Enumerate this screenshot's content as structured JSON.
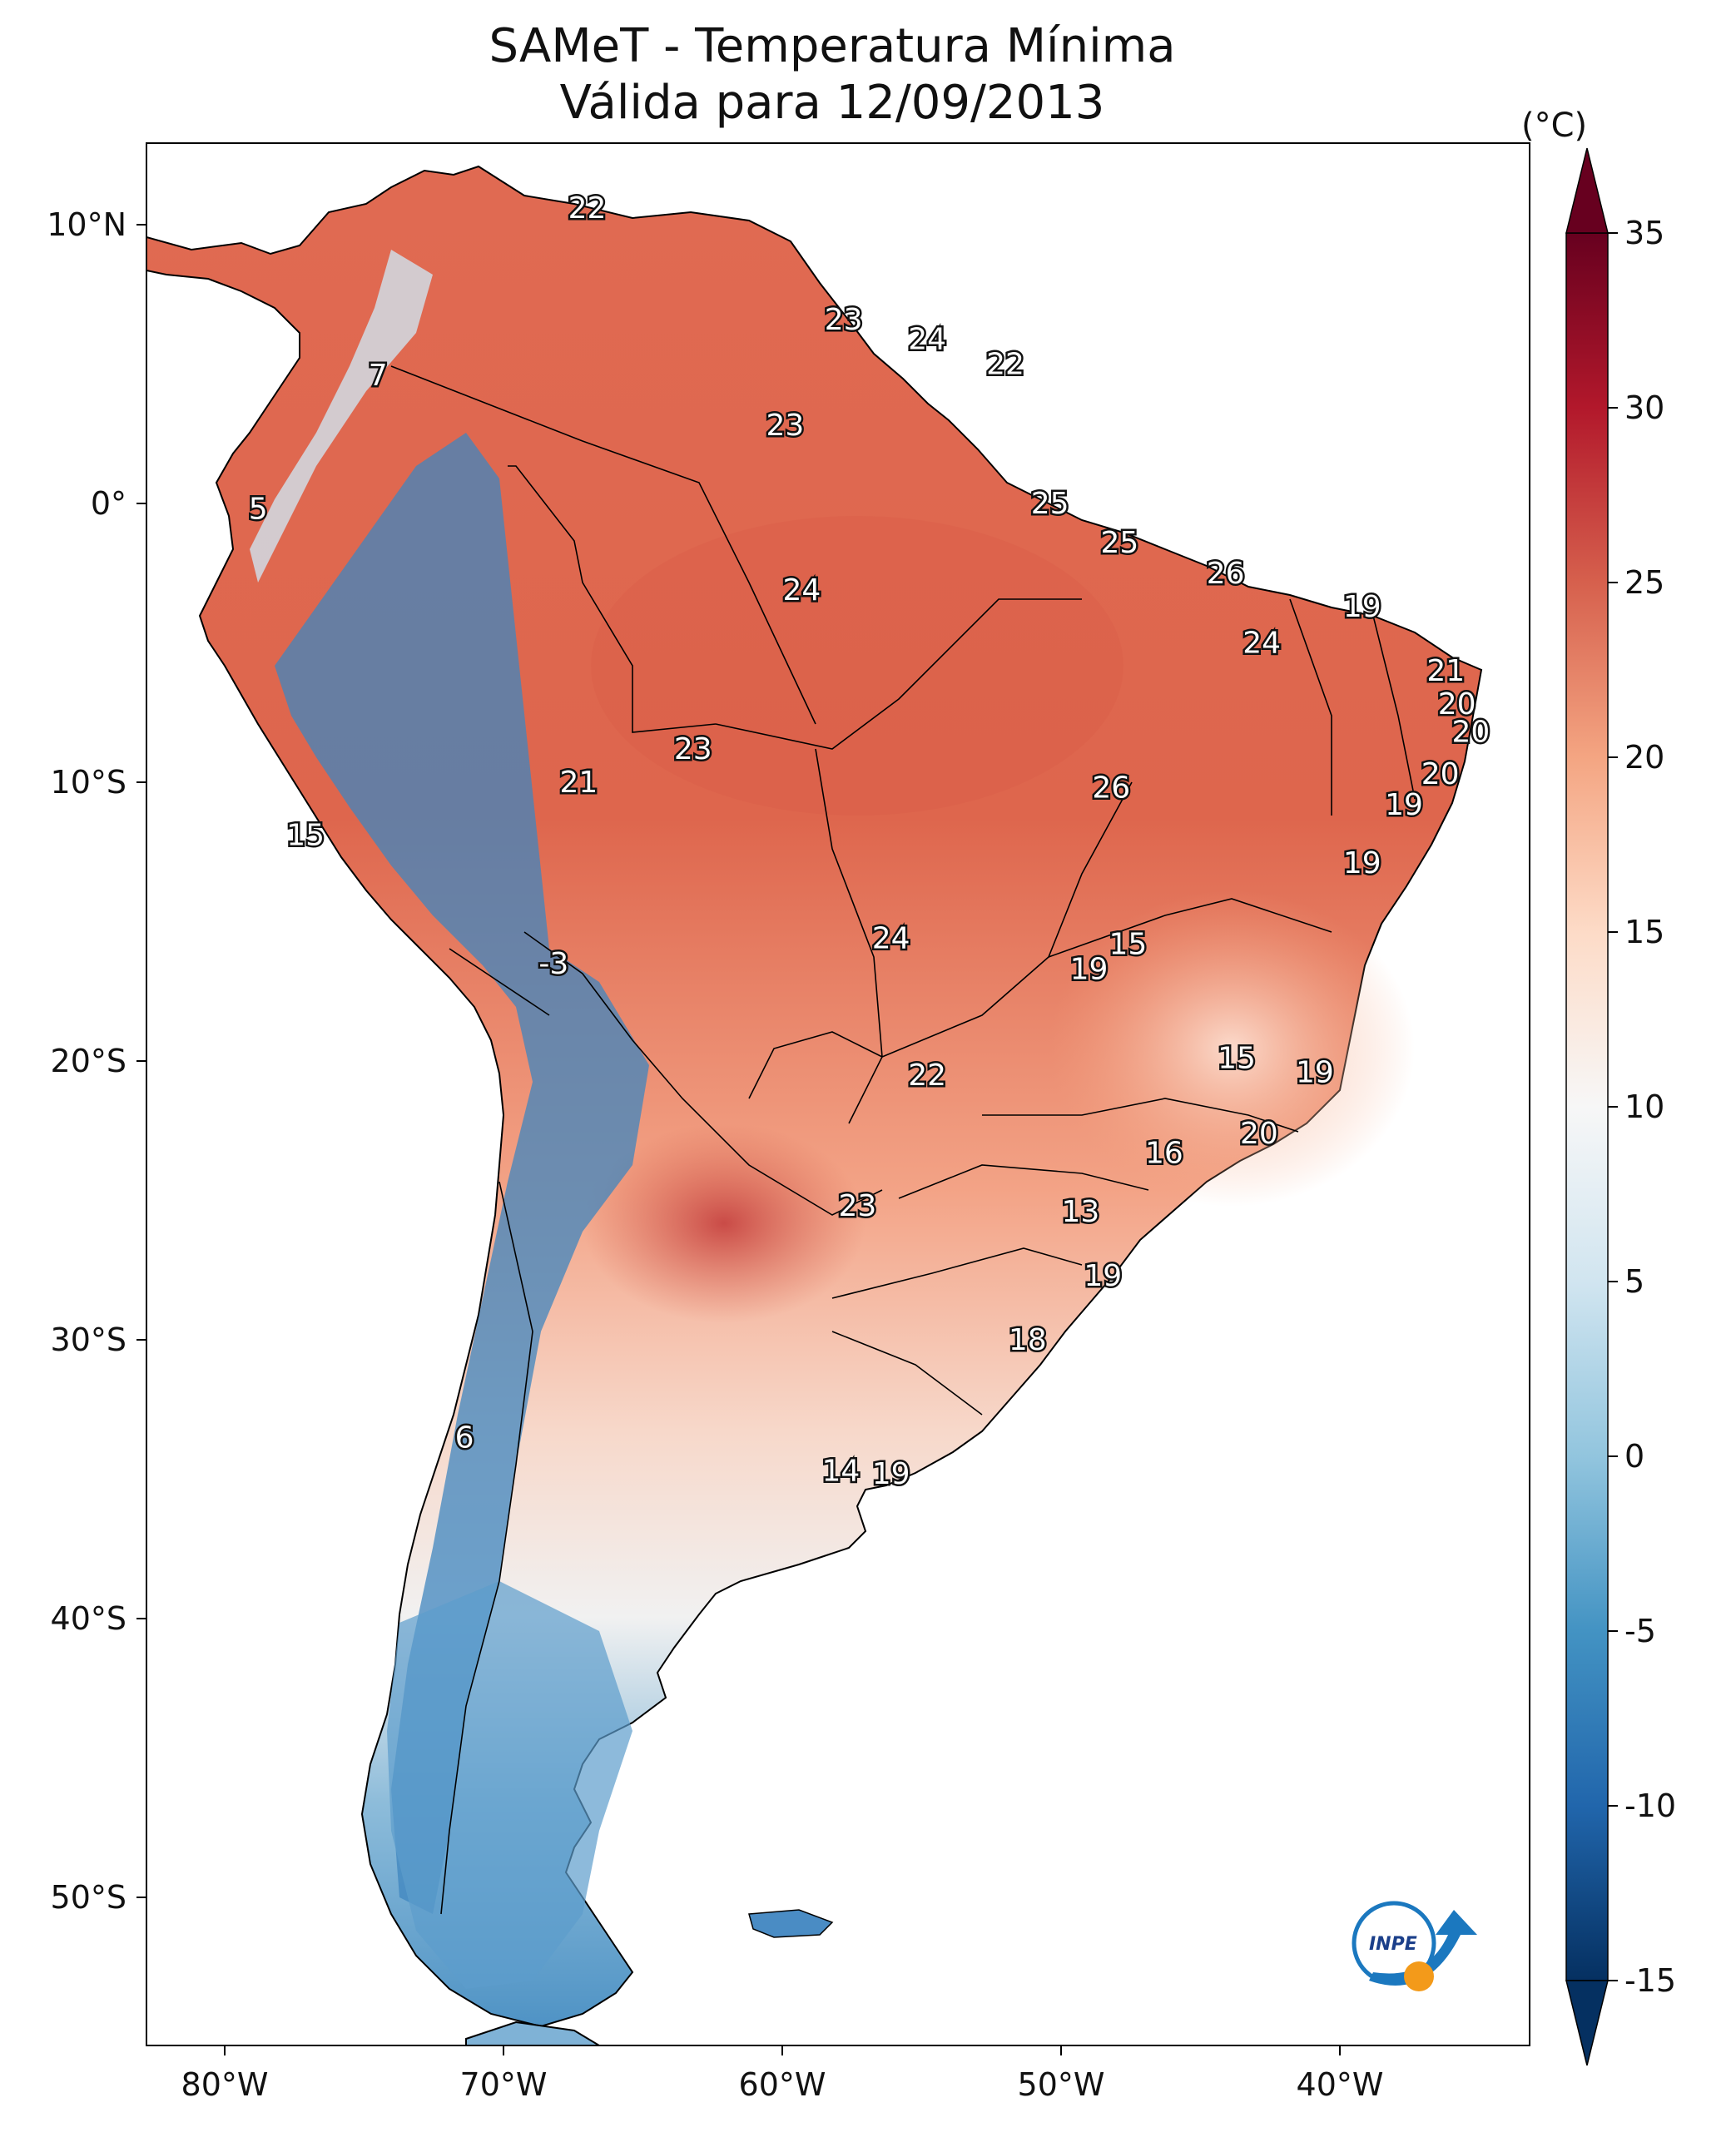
{
  "title": "SAMeT - Temperatura Mínima",
  "subtitle": "Válida para 12/09/2013",
  "colorbar": {
    "unit": "(°C)",
    "min": -15,
    "max": 35,
    "ticks": [
      "35",
      "30",
      "25",
      "20",
      "15",
      "10",
      "5",
      "0",
      "-5",
      "-10",
      "-15"
    ],
    "colors": [
      "#053061",
      "#2166ac",
      "#4393c3",
      "#92c5de",
      "#d1e5f0",
      "#f7f7f7",
      "#fddbc7",
      "#f4a582",
      "#d6604d",
      "#b2182b",
      "#67001f"
    ]
  },
  "axes": {
    "lon_ticks": [
      "80°W",
      "70°W",
      "60°W",
      "50°W",
      "40°W"
    ],
    "lat_ticks": [
      "10°N",
      "0°",
      "10°S",
      "20°S",
      "30°S",
      "40°S",
      "50°S"
    ]
  },
  "map_values": [
    {
      "text": "22",
      "lon": -67.0,
      "lat": 10.6
    },
    {
      "text": "7",
      "lon": -74.5,
      "lat": 4.6
    },
    {
      "text": "23",
      "lon": -57.8,
      "lat": 6.6
    },
    {
      "text": "24",
      "lon": -54.8,
      "lat": 5.9
    },
    {
      "text": "22",
      "lon": -52.0,
      "lat": 5.0
    },
    {
      "text": "23",
      "lon": -59.9,
      "lat": 2.8
    },
    {
      "text": "5",
      "lon": -78.8,
      "lat": -0.2
    },
    {
      "text": "25",
      "lon": -50.4,
      "lat": 0.0
    },
    {
      "text": "25",
      "lon": -47.9,
      "lat": -1.4
    },
    {
      "text": "26",
      "lon": -44.1,
      "lat": -2.5
    },
    {
      "text": "24",
      "lon": -59.3,
      "lat": -3.1
    },
    {
      "text": "19",
      "lon": -39.2,
      "lat": -3.7
    },
    {
      "text": "24",
      "lon": -42.8,
      "lat": -5.0
    },
    {
      "text": "21",
      "lon": -36.2,
      "lat": -6.0
    },
    {
      "text": "20",
      "lon": -35.8,
      "lat": -7.2
    },
    {
      "text": "20",
      "lon": -35.3,
      "lat": -8.2
    },
    {
      "text": "23",
      "lon": -63.2,
      "lat": -8.8
    },
    {
      "text": "21",
      "lon": -67.3,
      "lat": -10.0
    },
    {
      "text": "26",
      "lon": -48.2,
      "lat": -10.2
    },
    {
      "text": "20",
      "lon": -36.4,
      "lat": -9.7
    },
    {
      "text": "19",
      "lon": -37.7,
      "lat": -10.8
    },
    {
      "text": "15",
      "lon": -77.1,
      "lat": -11.9
    },
    {
      "text": "19",
      "lon": -39.2,
      "lat": -12.9
    },
    {
      "text": "24",
      "lon": -56.1,
      "lat": -15.6
    },
    {
      "text": "15",
      "lon": -47.6,
      "lat": -15.8
    },
    {
      "text": "19",
      "lon": -49.0,
      "lat": -16.7
    },
    {
      "text": "-3",
      "lon": -68.2,
      "lat": -16.5
    },
    {
      "text": "15",
      "lon": -43.7,
      "lat": -19.9
    },
    {
      "text": "19",
      "lon": -40.9,
      "lat": -20.4
    },
    {
      "text": "22",
      "lon": -54.8,
      "lat": -20.5
    },
    {
      "text": "20",
      "lon": -42.9,
      "lat": -22.6
    },
    {
      "text": "16",
      "lon": -46.3,
      "lat": -23.3
    },
    {
      "text": "23",
      "lon": -57.3,
      "lat": -25.2
    },
    {
      "text": "13",
      "lon": -49.3,
      "lat": -25.4
    },
    {
      "text": "19",
      "lon": -48.5,
      "lat": -27.7
    },
    {
      "text": "18",
      "lon": -51.2,
      "lat": -30.0
    },
    {
      "text": "6",
      "lon": -71.4,
      "lat": -33.5
    },
    {
      "text": "14",
      "lon": -57.9,
      "lat": -34.7
    },
    {
      "text": "19",
      "lon": -56.1,
      "lat": -34.8
    }
  ],
  "logo": {
    "text": "INPE"
  }
}
